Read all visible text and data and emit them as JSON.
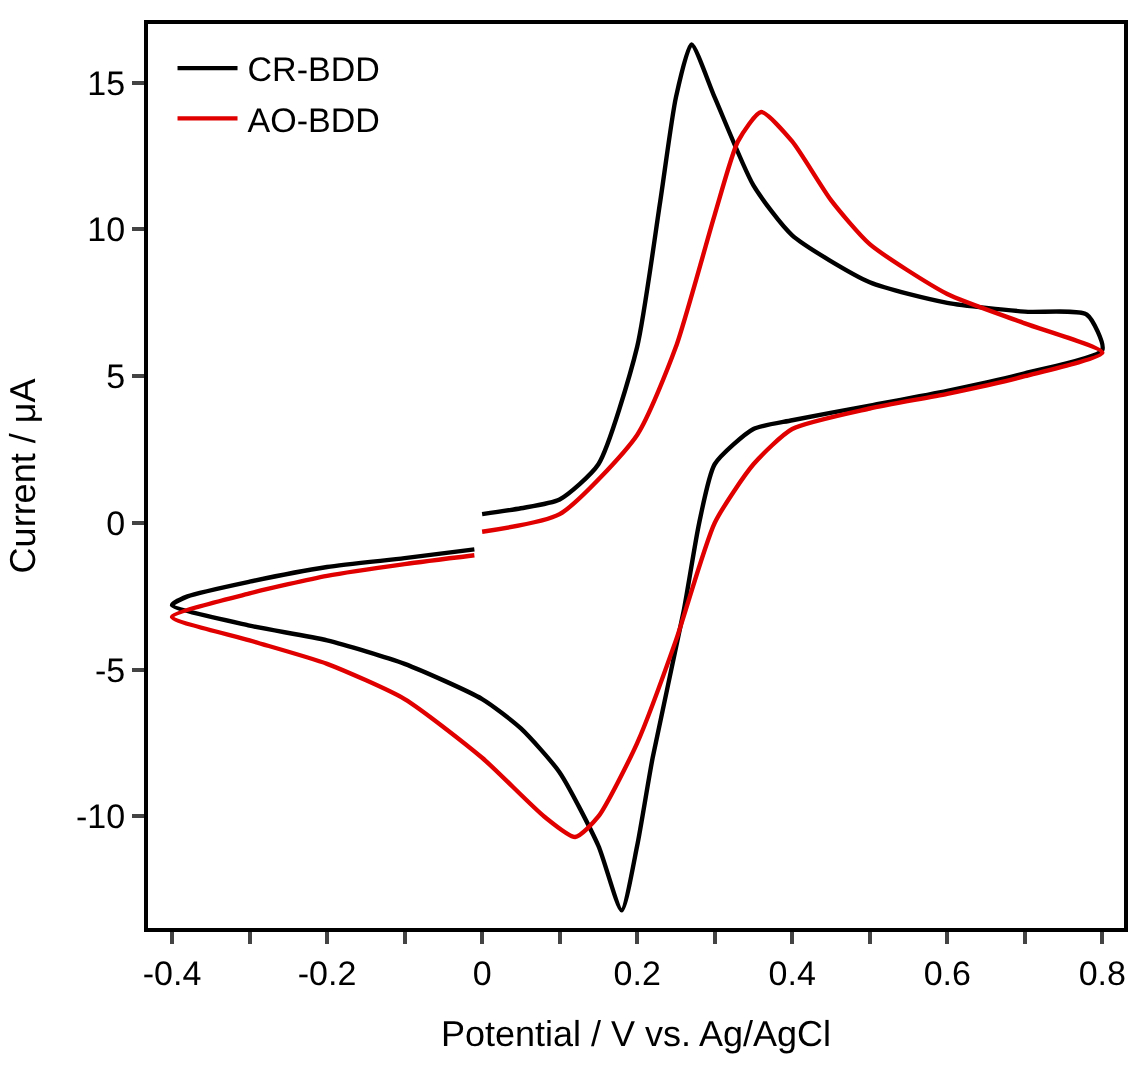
{
  "chart_data": {
    "type": "line",
    "xlabel": "Potential / V vs. Ag/AgCl",
    "ylabel": "Current / μA",
    "xlim": [
      -0.431,
      0.828
    ],
    "ylim": [
      -13.8,
      17
    ],
    "xticks": [
      -0.4,
      {
        "value": -0.3,
        "label": null
      },
      -0.2,
      {
        "value": -0.1,
        "label": null
      },
      0,
      {
        "value": 0.1,
        "label": null
      },
      0.2,
      {
        "value": 0.3,
        "label": null
      },
      0.4,
      {
        "value": 0.5,
        "label": null
      },
      0.6,
      {
        "value": 0.7,
        "label": null
      },
      0.8
    ],
    "yticks": [
      -10,
      -5,
      0,
      5,
      10,
      15
    ],
    "legend": "top left",
    "marker": "none",
    "line_style": "solid",
    "series": [
      {
        "name": "CR-BDD",
        "color": "#000000",
        "x": [
          0,
          0.05,
          0.1,
          0.15,
          0.2,
          0.23,
          0.25,
          0.27,
          0.3,
          0.35,
          0.4,
          0.5,
          0.6,
          0.7,
          0.78,
          0.8,
          0.7,
          0.6,
          0.5,
          0.4,
          0.35,
          0.3,
          0.28,
          0.26,
          0.22,
          0.2,
          0.18,
          0.15,
          0.1,
          0.05,
          0,
          -0.1,
          -0.2,
          -0.3,
          -0.4,
          -0.38,
          -0.3,
          -0.2,
          -0.1,
          -0.01
        ],
        "values": [
          0.3,
          0.5,
          0.8,
          2,
          6,
          11,
          14.5,
          16.3,
          14.5,
          11.5,
          9.8,
          8.2,
          7.5,
          7.2,
          7.1,
          5.9,
          5.1,
          4.5,
          4.0,
          3.5,
          3.2,
          2.0,
          0,
          -3,
          -8,
          -11,
          -13.2,
          -11,
          -8.5,
          -7,
          -6,
          -4.8,
          -4,
          -3.5,
          -2.8,
          -2.5,
          -2.0,
          -1.5,
          -1.2,
          -0.9
        ]
      },
      {
        "name": "AO-BDD",
        "color": "#e00000",
        "x": [
          0,
          0.1,
          0.2,
          0.25,
          0.3,
          0.33,
          0.36,
          0.4,
          0.45,
          0.5,
          0.6,
          0.7,
          0.8,
          0.7,
          0.6,
          0.5,
          0.4,
          0.35,
          0.3,
          0.25,
          0.2,
          0.15,
          0.12,
          0.08,
          0,
          -0.1,
          -0.2,
          -0.3,
          -0.4,
          -0.3,
          -0.2,
          -0.1,
          -0.01
        ],
        "values": [
          -0.3,
          0.3,
          3,
          6,
          10.5,
          13,
          14.0,
          13,
          11,
          9.5,
          7.8,
          6.8,
          5.8,
          5.0,
          4.4,
          3.9,
          3.2,
          2.0,
          0,
          -4,
          -7.5,
          -10,
          -10.7,
          -10,
          -8,
          -6,
          -4.8,
          -4,
          -3.2,
          -2.4,
          -1.8,
          -1.4,
          -1.1
        ]
      }
    ]
  }
}
